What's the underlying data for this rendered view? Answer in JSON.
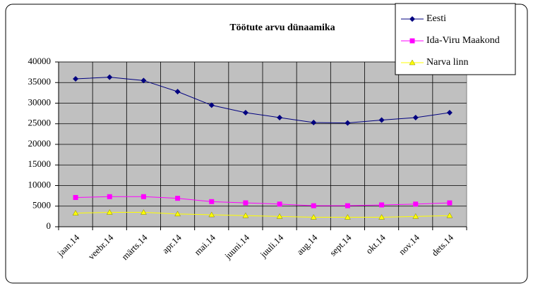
{
  "chart_data": {
    "type": "line",
    "title": "Töötute arvu dünaamika",
    "categories": [
      "jaan.14",
      "veebr.14",
      "märts.14",
      "apr.14",
      "mai.14",
      "juuni.14",
      "juuli.14",
      "aug.14",
      "sept.14",
      "okt.14",
      "nov.14",
      "dets.14"
    ],
    "series": [
      {
        "name": "Eesti",
        "color": "#000080",
        "marker": "diamond",
        "values": [
          35900,
          36300,
          35500,
          32800,
          29500,
          27700,
          26500,
          25300,
          25200,
          25900,
          26500,
          27700
        ]
      },
      {
        "name": "Ida-Viru Maakond",
        "color": "#ff00ff",
        "marker": "square",
        "values": [
          7100,
          7300,
          7300,
          6900,
          6100,
          5800,
          5500,
          5100,
          5100,
          5300,
          5500,
          5800
        ]
      },
      {
        "name": "Narva linn",
        "color": "#ffff00",
        "marker": "triangle",
        "values": [
          3300,
          3500,
          3500,
          3100,
          2900,
          2700,
          2500,
          2300,
          2300,
          2300,
          2500,
          2700
        ]
      }
    ],
    "ylim": [
      0,
      40000
    ],
    "yticks": [
      0,
      5000,
      10000,
      15000,
      20000,
      25000,
      30000,
      35000,
      40000
    ],
    "grid": true,
    "legend": "top-right"
  }
}
